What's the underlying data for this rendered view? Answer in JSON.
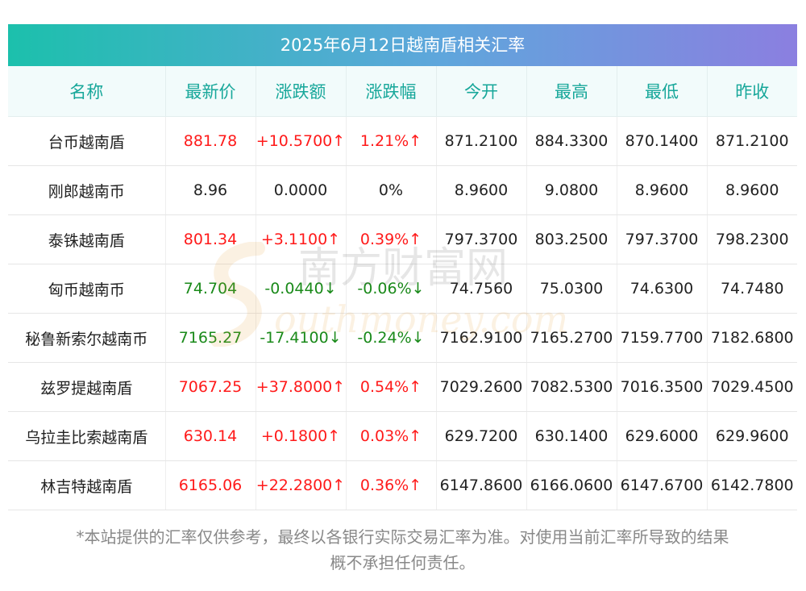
{
  "title": "2025年6月12日越南盾相关汇率",
  "headers": [
    "名称",
    "最新价",
    "涨跌额",
    "涨跌幅",
    "今开",
    "最高",
    "最低",
    "昨收"
  ],
  "rows": [
    {
      "name": "台币越南盾",
      "price": "881.78",
      "change": "+10.5700↑",
      "pct": "1.21%↑",
      "open": "871.2100",
      "high": "884.3300",
      "low": "870.1400",
      "prev": "871.2100",
      "dir": "up"
    },
    {
      "name": "刚郎越南币",
      "price": "8.96",
      "change": "0.0000",
      "pct": "0%",
      "open": "8.9600",
      "high": "9.0800",
      "low": "8.9600",
      "prev": "8.9600",
      "dir": "flat"
    },
    {
      "name": "泰铢越南盾",
      "price": "801.34",
      "change": "+3.1100↑",
      "pct": "0.39%↑",
      "open": "797.3700",
      "high": "803.2500",
      "low": "797.3700",
      "prev": "798.2300",
      "dir": "up"
    },
    {
      "name": "匈币越南币",
      "price": "74.704",
      "change": "-0.0440↓",
      "pct": "-0.06%↓",
      "open": "74.7560",
      "high": "75.0300",
      "low": "74.6300",
      "prev": "74.7480",
      "dir": "down"
    },
    {
      "name": "秘鲁新索尔越南币",
      "price": "7165.27",
      "change": "-17.4100↓",
      "pct": "-0.24%↓",
      "open": "7162.9100",
      "high": "7165.2700",
      "low": "7159.7700",
      "prev": "7182.6800",
      "dir": "down"
    },
    {
      "name": "兹罗提越南盾",
      "price": "7067.25",
      "change": "+37.8000↑",
      "pct": "0.54%↑",
      "open": "7029.2600",
      "high": "7082.5300",
      "low": "7016.3500",
      "prev": "7029.4500",
      "dir": "up"
    },
    {
      "name": "乌拉圭比索越南盾",
      "price": "630.14",
      "change": "+0.1800↑",
      "pct": "0.03%↑",
      "open": "629.7200",
      "high": "630.1400",
      "low": "629.6000",
      "prev": "629.9600",
      "dir": "up"
    },
    {
      "name": "林吉特越南盾",
      "price": "6165.06",
      "change": "+22.2800↑",
      "pct": "0.36%↑",
      "open": "6147.8600",
      "high": "6166.0600",
      "low": "6147.6700",
      "prev": "6142.7800",
      "dir": "up"
    }
  ],
  "watermark": {
    "cn": "南方财富网",
    "en": "outhmoney.com"
  },
  "footnote_line1": "*本站提供的汇率仅供参考，最终以各银行实际交易汇率为准。对使用当前汇率所导致的结果",
  "footnote_line2": "概不承担任何责任。",
  "colors": {
    "up": "#ff1a1a",
    "down": "#1a8a1a",
    "header_text": "#17a79a",
    "gradient_start": "#1cc0ac",
    "gradient_end": "#8b7fe0"
  }
}
